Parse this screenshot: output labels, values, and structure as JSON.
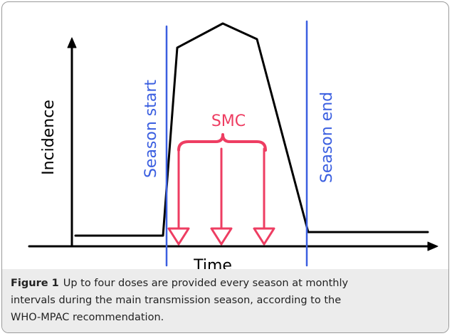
{
  "diagram": {
    "y_axis_label": "Incidence",
    "x_axis_label": "Time",
    "season_start": "Season start",
    "season_end": "Season end",
    "intervention": "SMC"
  },
  "caption": {
    "label": "Figure 1",
    "lines": [
      "Up to four doses are provided every season at monthly",
      "intervals during the main transmission season, according to the",
      "WHO-MPAC recommendation."
    ]
  }
}
